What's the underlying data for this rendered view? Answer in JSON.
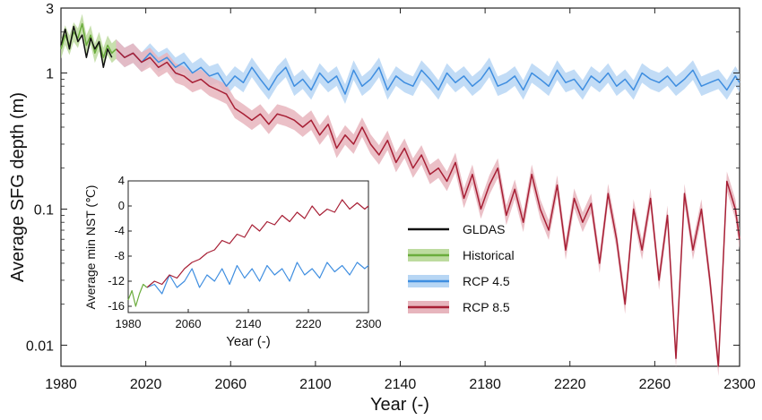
{
  "chart_data": [
    {
      "type": "line",
      "yscale": "log",
      "xlabel": "Year (-)",
      "ylabel": "Average SFG depth (m)",
      "xlim": [
        1980,
        2300
      ],
      "ylim": [
        0.007,
        3
      ],
      "xticks": [
        1980,
        2020,
        2060,
        2100,
        2140,
        2180,
        2220,
        2260,
        2300
      ],
      "xtick_labels": [
        "1980",
        "2020",
        "2060",
        "2100",
        "2140",
        "2180",
        "2220",
        "2260",
        "2300"
      ],
      "yticks": [
        0.01,
        0.1,
        1,
        3
      ],
      "ytick_labels": [
        "0.01",
        "0.1",
        "1",
        "3"
      ],
      "legend": {
        "placement": "right-center",
        "entries": [
          {
            "label": "GLDAS",
            "color": "#111111",
            "band": ""
          },
          {
            "label": "Historical",
            "color": "#6aac3c",
            "band": "#bddb9f"
          },
          {
            "label": "RCP 4.5",
            "color": "#3f8ee0",
            "band": "#b7d6f4"
          },
          {
            "label": "RCP 8.5",
            "color": "#a71f35",
            "band": "#e7b5bd"
          }
        ]
      },
      "series": [
        {
          "name": "GLDAS",
          "color": "#111111",
          "x": [
            1980,
            1982,
            1984,
            1986,
            1988,
            1990,
            1992,
            1994,
            1996,
            1998,
            2000,
            2002,
            2004
          ],
          "y": [
            1.6,
            2.1,
            1.5,
            2.2,
            1.7,
            1.9,
            1.3,
            1.8,
            1.5,
            1.7,
            1.1,
            1.5,
            1.3
          ]
        },
        {
          "name": "Historical",
          "color": "#6aac3c",
          "band": "#bddb9f",
          "x": [
            1980,
            1982,
            1984,
            1986,
            1988,
            1990,
            1992,
            1994,
            1996,
            1998,
            2000,
            2002,
            2004,
            2006
          ],
          "y": [
            1.5,
            1.9,
            1.6,
            2.0,
            1.8,
            2.3,
            1.6,
            1.9,
            1.4,
            1.7,
            1.3,
            1.6,
            1.4,
            1.5
          ]
        },
        {
          "name": "RCP 4.5",
          "color": "#3f8ee0",
          "band": "#b7d6f4",
          "x": [
            2006,
            2010,
            2014,
            2018,
            2022,
            2026,
            2030,
            2034,
            2038,
            2042,
            2046,
            2050,
            2054,
            2058,
            2062,
            2066,
            2070,
            2074,
            2078,
            2082,
            2086,
            2090,
            2094,
            2098,
            2102,
            2106,
            2110,
            2114,
            2118,
            2122,
            2126,
            2130,
            2134,
            2138,
            2142,
            2146,
            2150,
            2154,
            2158,
            2162,
            2166,
            2170,
            2174,
            2178,
            2182,
            2186,
            2190,
            2194,
            2198,
            2202,
            2206,
            2210,
            2214,
            2218,
            2222,
            2226,
            2230,
            2234,
            2238,
            2242,
            2246,
            2250,
            2254,
            2258,
            2262,
            2266,
            2270,
            2274,
            2278,
            2282,
            2286,
            2290,
            2294,
            2298,
            2300
          ],
          "y": [
            1.5,
            1.3,
            1.4,
            1.2,
            1.4,
            1.2,
            1.3,
            1.1,
            1.2,
            1.0,
            1.1,
            0.95,
            1.0,
            0.8,
            0.95,
            0.85,
            1.1,
            0.9,
            0.75,
            0.95,
            1.1,
            0.8,
            0.9,
            0.75,
            1.0,
            0.85,
            0.95,
            0.7,
            1.05,
            0.8,
            0.9,
            1.1,
            0.75,
            0.95,
            0.85,
            0.8,
            1.05,
            0.9,
            0.75,
            1.0,
            0.85,
            0.95,
            0.8,
            0.9,
            1.1,
            0.8,
            0.85,
            0.95,
            0.75,
            1.0,
            0.9,
            0.8,
            1.05,
            0.85,
            0.9,
            0.75,
            0.95,
            0.85,
            1.0,
            0.8,
            0.9,
            0.75,
            1.0,
            0.9,
            0.85,
            0.95,
            0.8,
            0.9,
            1.05,
            0.8,
            0.85,
            0.9,
            0.75,
            0.95,
            0.85
          ]
        },
        {
          "name": "RCP 8.5",
          "color": "#a71f35",
          "band": "#e7b5bd",
          "x": [
            2006,
            2010,
            2014,
            2018,
            2022,
            2026,
            2030,
            2034,
            2038,
            2042,
            2046,
            2050,
            2054,
            2058,
            2062,
            2066,
            2070,
            2074,
            2078,
            2082,
            2086,
            2090,
            2094,
            2098,
            2102,
            2106,
            2110,
            2114,
            2118,
            2122,
            2126,
            2130,
            2134,
            2138,
            2142,
            2146,
            2150,
            2154,
            2158,
            2162,
            2166,
            2170,
            2174,
            2178,
            2182,
            2186,
            2190,
            2194,
            2198,
            2202,
            2206,
            2210,
            2214,
            2218,
            2222,
            2226,
            2230,
            2234,
            2238,
            2242,
            2246,
            2250,
            2254,
            2258,
            2262,
            2266,
            2270,
            2274,
            2278,
            2282,
            2286,
            2290,
            2294,
            2298,
            2300
          ],
          "y": [
            1.5,
            1.3,
            1.4,
            1.2,
            1.3,
            1.1,
            1.2,
            1.0,
            0.95,
            0.85,
            0.9,
            0.8,
            0.75,
            0.7,
            0.55,
            0.5,
            0.45,
            0.5,
            0.42,
            0.5,
            0.48,
            0.45,
            0.4,
            0.45,
            0.35,
            0.42,
            0.28,
            0.35,
            0.3,
            0.4,
            0.3,
            0.25,
            0.32,
            0.22,
            0.28,
            0.2,
            0.25,
            0.18,
            0.2,
            0.16,
            0.22,
            0.12,
            0.18,
            0.1,
            0.15,
            0.2,
            0.09,
            0.14,
            0.08,
            0.18,
            0.1,
            0.07,
            0.15,
            0.05,
            0.12,
            0.08,
            0.11,
            0.04,
            0.13,
            0.06,
            0.02,
            0.1,
            0.05,
            0.12,
            0.03,
            0.09,
            0.008,
            0.13,
            0.05,
            0.1,
            0.03,
            0.007,
            0.16,
            0.1,
            0.06
          ]
        }
      ]
    },
    {
      "type": "line",
      "xlabel": "Year (-)",
      "ylabel": "Average min NST (℃)",
      "xlim": [
        1980,
        2300
      ],
      "ylim": [
        -17,
        4
      ],
      "xticks": [
        1980,
        2060,
        2140,
        2220,
        2300
      ],
      "xtick_labels": [
        "1980",
        "2060",
        "2140",
        "2220",
        "2300"
      ],
      "yticks": [
        4,
        0,
        -4,
        -8,
        -12,
        -16
      ],
      "ytick_labels": [
        "4",
        "0",
        "-4",
        "-8",
        "-12",
        "-16"
      ],
      "series": [
        {
          "name": "Historical",
          "color": "#6aac3c",
          "x": [
            1980,
            1985,
            1990,
            1995,
            2000,
            2005
          ],
          "y": [
            -15,
            -13.5,
            -16,
            -14,
            -12.5,
            -13
          ]
        },
        {
          "name": "RCP 4.5",
          "color": "#3f8ee0",
          "x": [
            2005,
            2015,
            2025,
            2035,
            2045,
            2055,
            2065,
            2075,
            2085,
            2095,
            2105,
            2115,
            2125,
            2135,
            2145,
            2155,
            2165,
            2175,
            2185,
            2195,
            2205,
            2215,
            2225,
            2235,
            2245,
            2255,
            2265,
            2275,
            2285,
            2295,
            2300
          ],
          "y": [
            -13,
            -12.5,
            -14,
            -11,
            -13,
            -12,
            -10,
            -13,
            -11,
            -12,
            -10,
            -12.5,
            -9.5,
            -11.5,
            -10,
            -12,
            -9.5,
            -11,
            -10,
            -12,
            -9,
            -11,
            -10,
            -11.5,
            -9,
            -10.5,
            -9.5,
            -11,
            -9,
            -10,
            -9.5
          ]
        },
        {
          "name": "RCP 8.5",
          "color": "#a71f35",
          "x": [
            2005,
            2015,
            2025,
            2035,
            2045,
            2055,
            2065,
            2075,
            2085,
            2095,
            2105,
            2115,
            2125,
            2135,
            2145,
            2155,
            2165,
            2175,
            2185,
            2195,
            2205,
            2215,
            2225,
            2235,
            2245,
            2255,
            2265,
            2275,
            2285,
            2295,
            2300
          ],
          "y": [
            -13,
            -12,
            -12.5,
            -11,
            -11.5,
            -10,
            -9,
            -8.5,
            -7.5,
            -7,
            -5.5,
            -6,
            -4.5,
            -5,
            -3,
            -4,
            -2.5,
            -3,
            -1.5,
            -2.5,
            -1,
            -2,
            0,
            -1.5,
            -0.5,
            -1,
            1,
            -0.5,
            0.5,
            -0.5,
            0
          ]
        }
      ]
    }
  ]
}
